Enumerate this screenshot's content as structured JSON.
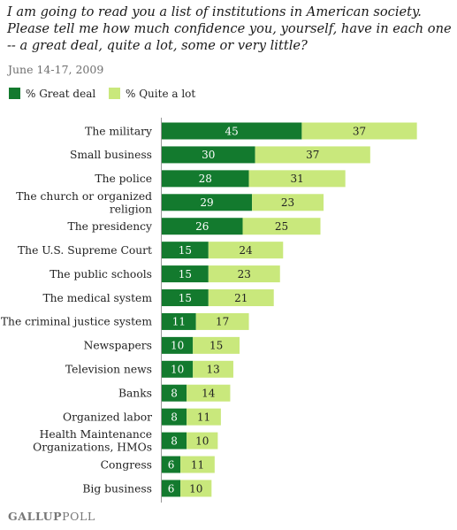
{
  "question": "I am going to read you a list of institutions in American society. Please tell me how much confidence you, yourself, have in each one -- a great deal, quite a lot, some or very little?",
  "date": "June 14-17, 2009",
  "logo": {
    "part1": "GALLUP",
    "part2": "POLL"
  },
  "colors": {
    "great_deal": "#137a2e",
    "quite_a_lot": "#c9e87c",
    "axis": "#999999"
  },
  "chart_data": {
    "type": "bar",
    "orientation": "horizontal",
    "stacked": true,
    "categories": [
      [
        "The military"
      ],
      [
        "Small business"
      ],
      [
        "The police"
      ],
      [
        "The church or organized",
        "religion"
      ],
      [
        "The presidency"
      ],
      [
        "The U.S. Supreme Court"
      ],
      [
        "The public schools"
      ],
      [
        "The medical system"
      ],
      [
        "The criminal justice system"
      ],
      [
        "Newspapers"
      ],
      [
        "Television news"
      ],
      [
        "Banks"
      ],
      [
        "Organized labor"
      ],
      [
        "Health Maintenance",
        "Organizations, HMOs"
      ],
      [
        "Congress"
      ],
      [
        "Big business"
      ]
    ],
    "series": [
      {
        "name": "% Great deal",
        "values": [
          45,
          30,
          28,
          29,
          26,
          15,
          15,
          15,
          11,
          10,
          10,
          8,
          8,
          8,
          6,
          6
        ]
      },
      {
        "name": "% Quite a lot",
        "values": [
          37,
          37,
          31,
          23,
          25,
          24,
          23,
          21,
          17,
          15,
          13,
          14,
          11,
          10,
          11,
          10
        ]
      }
    ],
    "data_labels": true,
    "legend": "top-left"
  }
}
